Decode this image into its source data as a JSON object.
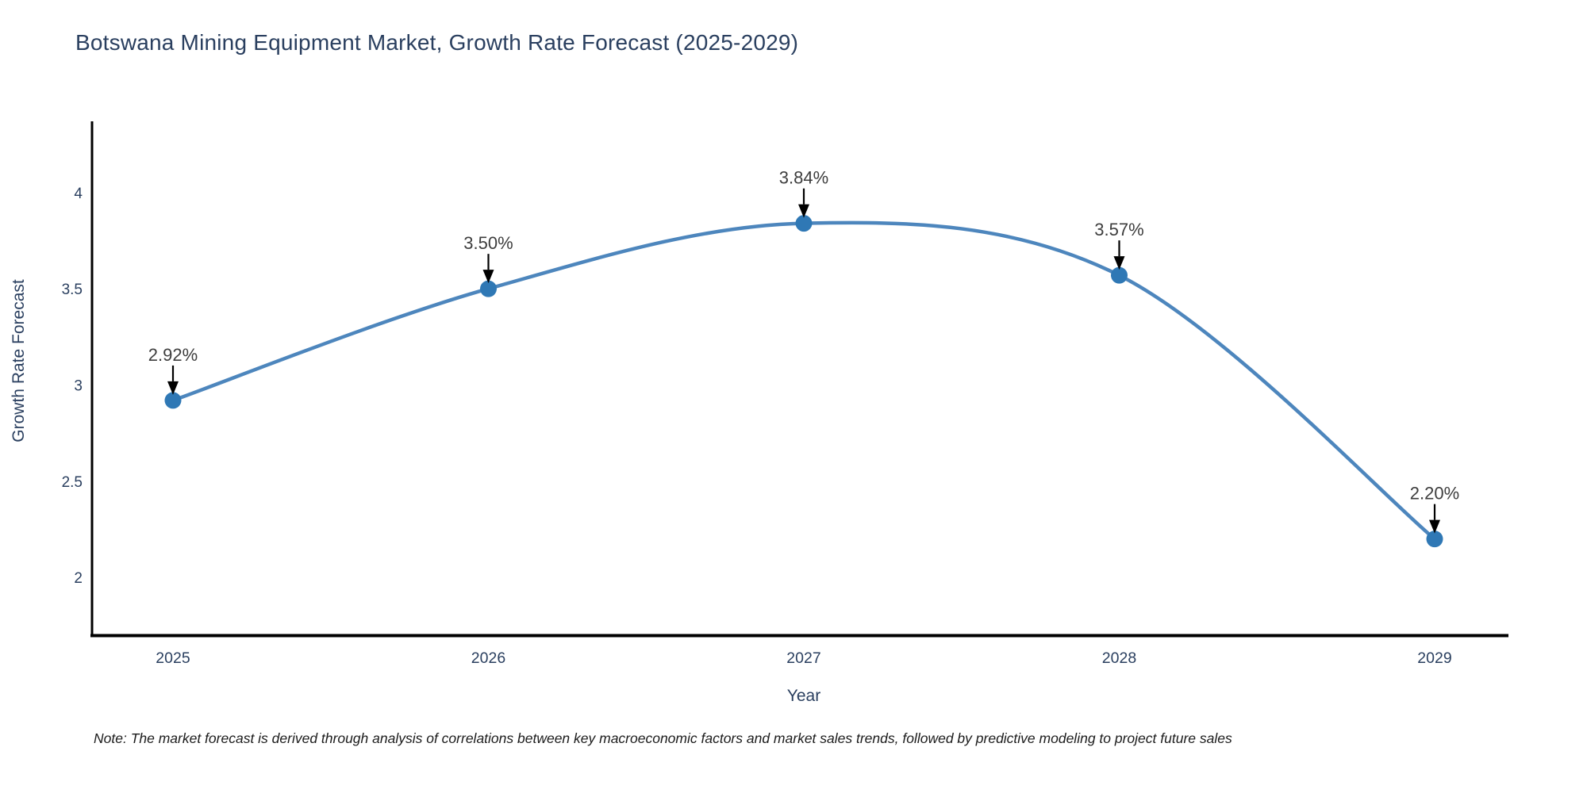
{
  "title": "Botswana Mining Equipment Market, Growth Rate Forecast (2025-2029)",
  "note": "Note: The market forecast is derived through analysis of correlations between key macroeconomic factors and market sales trends, followed by predictive modeling to project future sales",
  "chart_data": {
    "type": "line",
    "title": "Botswana Mining Equipment Market, Growth Rate Forecast (2025-2029)",
    "categories": [
      "2025",
      "2026",
      "2027",
      "2028",
      "2029"
    ],
    "values": [
      2.92,
      3.5,
      3.84,
      3.57,
      2.2
    ],
    "point_labels": [
      "2.92%",
      "3.50%",
      "3.84%",
      "3.57%",
      "2.20%"
    ],
    "xlabel": "Year",
    "ylabel": "Growth Rate Forecast",
    "yticks": [
      4,
      3.5,
      3,
      2.5,
      2
    ],
    "ytick_labels": [
      "4",
      "3.5",
      "3",
      "2.5",
      "2"
    ],
    "ylim": [
      1.7,
      4.37
    ],
    "grid": false,
    "legend": "none",
    "line_shape": "spline",
    "marker": "circle",
    "annotation_arrows": true,
    "colors": {
      "line": "#4d86bd",
      "marker": "#2f78b5",
      "arrow": "#000000",
      "axis": "#000000",
      "tick_text": "#2a3f5f",
      "annotation_text": "#3d3d3d",
      "title_text": "#2a3f5f"
    }
  }
}
